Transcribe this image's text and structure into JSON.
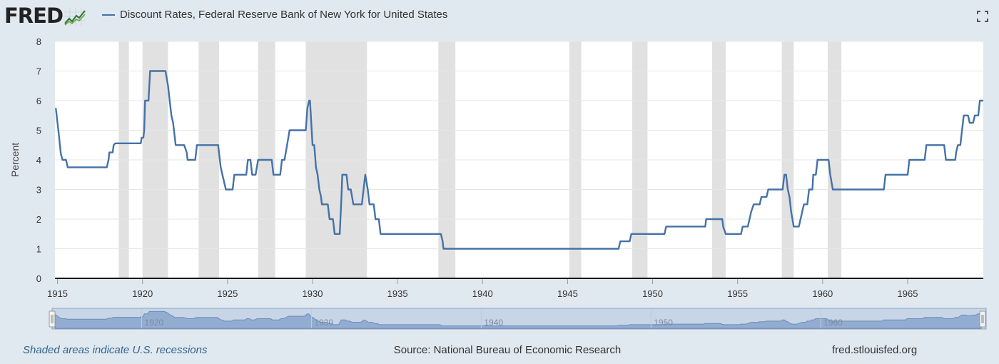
{
  "header": {
    "logo_text": "FRED",
    "series_title": "Discount Rates, Federal Reserve Bank of New York for United States",
    "series_color": "#4572a7"
  },
  "footer": {
    "recession_note": "Shaded areas indicate U.S. recessions",
    "source": "Source: National Bureau of Economic Research",
    "site": "fred.stlouisfed.org"
  },
  "icons": {
    "fullscreen": "fullscreen-icon",
    "logo_graph": "line-graph-icon"
  },
  "chart_data": {
    "type": "line",
    "title": "Discount Rates, Federal Reserve Bank of New York for United States",
    "xlabel": "",
    "ylabel": "Percent",
    "xlim": [
      1914.85,
      1969.45
    ],
    "ylim": [
      0,
      8
    ],
    "grid": true,
    "legend": "top-left",
    "y_ticks": [
      "0",
      "1",
      "2",
      "3",
      "4",
      "5",
      "6",
      "7",
      "8"
    ],
    "x_ticks": [
      "1915",
      "1920",
      "1925",
      "1930",
      "1935",
      "1940",
      "1945",
      "1950",
      "1955",
      "1960",
      "1965"
    ],
    "navigator_ticks": [
      "1920",
      "1930",
      "1940",
      "1950",
      "1960"
    ],
    "recessions": [
      [
        1918.6,
        1919.2
      ],
      [
        1920.0,
        1921.5
      ],
      [
        1923.3,
        1924.5
      ],
      [
        1926.8,
        1927.8
      ],
      [
        1929.6,
        1933.2
      ],
      [
        1937.4,
        1938.4
      ],
      [
        1945.1,
        1945.8
      ],
      [
        1948.8,
        1949.7
      ],
      [
        1953.5,
        1954.3
      ],
      [
        1957.6,
        1958.3
      ],
      [
        1960.3,
        1961.1
      ]
    ],
    "series": [
      {
        "name": "Discount Rates, Federal Reserve Bank of New York for United States",
        "color": "#4572a7",
        "points": [
          [
            1914.9,
            5.75
          ],
          [
            1915.05,
            5.0
          ],
          [
            1915.2,
            4.2
          ],
          [
            1915.3,
            4.0
          ],
          [
            1915.5,
            4.0
          ],
          [
            1915.6,
            3.75
          ],
          [
            1917.9,
            3.75
          ],
          [
            1918.0,
            4.0
          ],
          [
            1918.05,
            4.25
          ],
          [
            1918.25,
            4.25
          ],
          [
            1918.3,
            4.5
          ],
          [
            1918.4,
            4.56
          ],
          [
            1919.9,
            4.56
          ],
          [
            1919.95,
            4.75
          ],
          [
            1920.05,
            4.75
          ],
          [
            1920.1,
            5.0
          ],
          [
            1920.15,
            6.0
          ],
          [
            1920.35,
            6.0
          ],
          [
            1920.45,
            7.0
          ],
          [
            1921.35,
            7.0
          ],
          [
            1921.5,
            6.5
          ],
          [
            1921.6,
            6.0
          ],
          [
            1921.7,
            5.5
          ],
          [
            1921.8,
            5.25
          ],
          [
            1921.9,
            4.75
          ],
          [
            1921.95,
            4.5
          ],
          [
            1922.45,
            4.5
          ],
          [
            1922.6,
            4.25
          ],
          [
            1922.65,
            4.0
          ],
          [
            1923.1,
            4.0
          ],
          [
            1923.2,
            4.5
          ],
          [
            1924.45,
            4.5
          ],
          [
            1924.6,
            3.75
          ],
          [
            1924.7,
            3.5
          ],
          [
            1924.8,
            3.25
          ],
          [
            1924.9,
            3.0
          ],
          [
            1925.3,
            3.0
          ],
          [
            1925.4,
            3.5
          ],
          [
            1926.1,
            3.5
          ],
          [
            1926.2,
            4.0
          ],
          [
            1926.35,
            4.0
          ],
          [
            1926.45,
            3.5
          ],
          [
            1926.65,
            3.5
          ],
          [
            1926.8,
            4.0
          ],
          [
            1927.6,
            4.0
          ],
          [
            1927.7,
            3.5
          ],
          [
            1928.1,
            3.5
          ],
          [
            1928.2,
            4.0
          ],
          [
            1928.35,
            4.0
          ],
          [
            1928.5,
            4.5
          ],
          [
            1928.65,
            5.0
          ],
          [
            1929.6,
            5.0
          ],
          [
            1929.7,
            5.75
          ],
          [
            1929.8,
            6.0
          ],
          [
            1929.85,
            6.0
          ],
          [
            1929.95,
            5.0
          ],
          [
            1930.0,
            4.5
          ],
          [
            1930.1,
            4.5
          ],
          [
            1930.2,
            3.75
          ],
          [
            1930.3,
            3.5
          ],
          [
            1930.4,
            3.0
          ],
          [
            1930.5,
            2.75
          ],
          [
            1930.55,
            2.5
          ],
          [
            1930.9,
            2.5
          ],
          [
            1931.0,
            2.0
          ],
          [
            1931.2,
            2.0
          ],
          [
            1931.3,
            1.5
          ],
          [
            1931.6,
            1.5
          ],
          [
            1931.7,
            2.75
          ],
          [
            1931.75,
            3.5
          ],
          [
            1932.0,
            3.5
          ],
          [
            1932.1,
            3.0
          ],
          [
            1932.25,
            3.0
          ],
          [
            1932.4,
            2.5
          ],
          [
            1932.9,
            2.5
          ],
          [
            1933.0,
            3.0
          ],
          [
            1933.1,
            3.5
          ],
          [
            1933.25,
            3.0
          ],
          [
            1933.35,
            2.5
          ],
          [
            1933.6,
            2.5
          ],
          [
            1933.7,
            2.0
          ],
          [
            1933.9,
            2.0
          ],
          [
            1934.0,
            1.5
          ],
          [
            1937.55,
            1.5
          ],
          [
            1937.65,
            1.25
          ],
          [
            1937.7,
            1.0
          ],
          [
            1948.0,
            1.0
          ],
          [
            1948.1,
            1.25
          ],
          [
            1948.65,
            1.25
          ],
          [
            1948.75,
            1.5
          ],
          [
            1950.7,
            1.5
          ],
          [
            1950.8,
            1.75
          ],
          [
            1953.1,
            1.75
          ],
          [
            1953.15,
            2.0
          ],
          [
            1954.1,
            2.0
          ],
          [
            1954.15,
            1.75
          ],
          [
            1954.3,
            1.5
          ],
          [
            1955.2,
            1.5
          ],
          [
            1955.3,
            1.75
          ],
          [
            1955.6,
            1.75
          ],
          [
            1955.7,
            2.0
          ],
          [
            1955.8,
            2.25
          ],
          [
            1955.95,
            2.5
          ],
          [
            1956.3,
            2.5
          ],
          [
            1956.4,
            2.75
          ],
          [
            1956.7,
            2.75
          ],
          [
            1956.8,
            3.0
          ],
          [
            1957.65,
            3.0
          ],
          [
            1957.75,
            3.5
          ],
          [
            1957.85,
            3.5
          ],
          [
            1957.95,
            3.0
          ],
          [
            1958.05,
            2.75
          ],
          [
            1958.15,
            2.25
          ],
          [
            1958.3,
            1.75
          ],
          [
            1958.6,
            1.75
          ],
          [
            1958.7,
            2.0
          ],
          [
            1958.9,
            2.5
          ],
          [
            1959.1,
            2.5
          ],
          [
            1959.2,
            3.0
          ],
          [
            1959.4,
            3.0
          ],
          [
            1959.45,
            3.5
          ],
          [
            1959.6,
            3.5
          ],
          [
            1959.7,
            4.0
          ],
          [
            1960.35,
            4.0
          ],
          [
            1960.45,
            3.5
          ],
          [
            1960.6,
            3.0
          ],
          [
            1963.6,
            3.0
          ],
          [
            1963.7,
            3.5
          ],
          [
            1965.0,
            3.5
          ],
          [
            1965.05,
            3.75
          ],
          [
            1965.1,
            4.0
          ],
          [
            1966.0,
            4.0
          ],
          [
            1966.1,
            4.5
          ],
          [
            1967.15,
            4.5
          ],
          [
            1967.25,
            4.0
          ],
          [
            1967.8,
            4.0
          ],
          [
            1967.85,
            4.25
          ],
          [
            1967.95,
            4.5
          ],
          [
            1968.1,
            4.5
          ],
          [
            1968.2,
            5.0
          ],
          [
            1968.3,
            5.5
          ],
          [
            1968.55,
            5.5
          ],
          [
            1968.65,
            5.25
          ],
          [
            1968.85,
            5.25
          ],
          [
            1968.95,
            5.5
          ],
          [
            1969.15,
            5.5
          ],
          [
            1969.25,
            6.0
          ],
          [
            1969.45,
            6.0
          ]
        ]
      }
    ]
  }
}
